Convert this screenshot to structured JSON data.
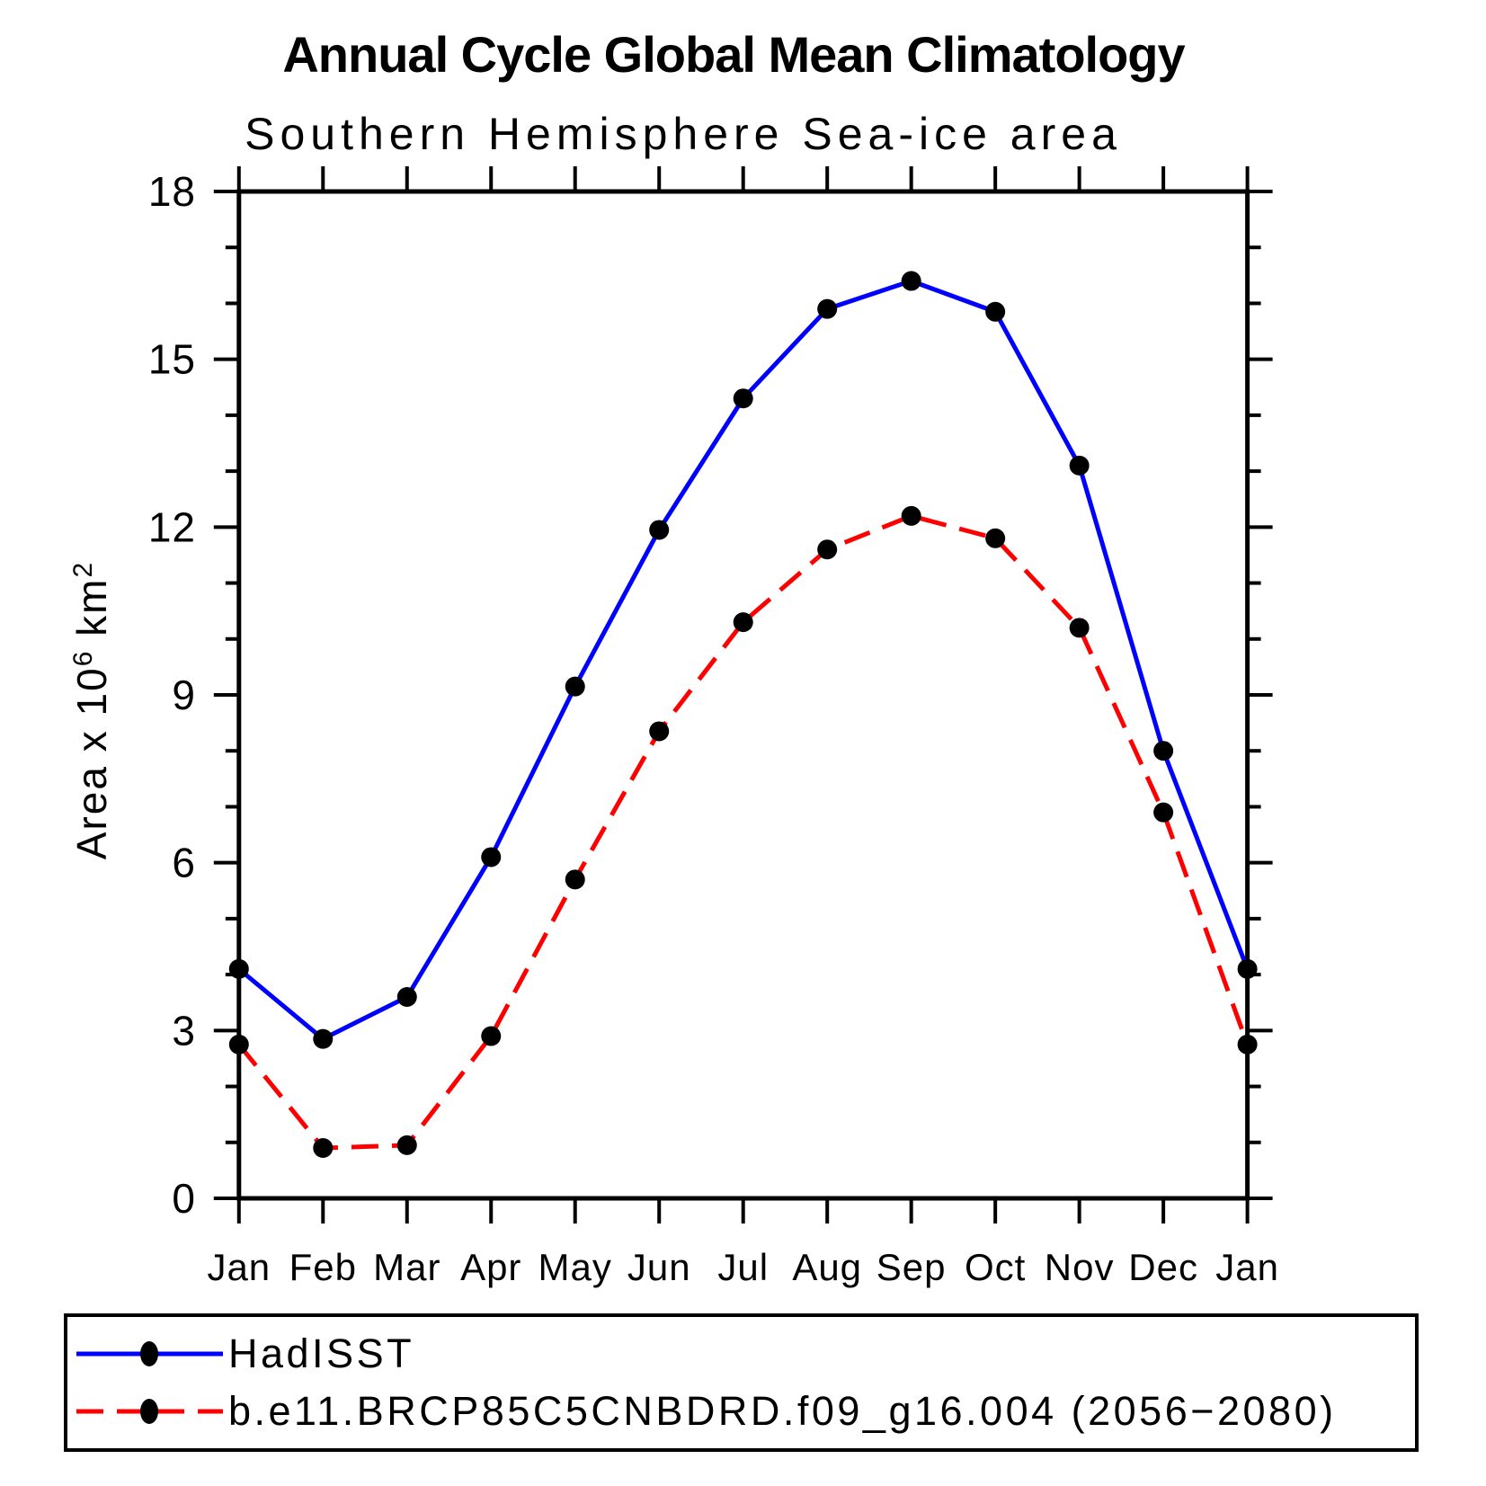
{
  "page": {
    "background": "#ffffff",
    "frame_color": "#000000"
  },
  "chart_data": {
    "type": "line",
    "title": "Annual Cycle Global Mean Climatology",
    "subtitle": "Southern Hemisphere Sea-ice area",
    "xlabel": "",
    "ylabel": "Area x 10^6 km^2",
    "ylabel_parts": {
      "prefix": "Area x 10",
      "exp1": "6",
      "mid": " km",
      "exp2": "2"
    },
    "categories": [
      "Jan",
      "Feb",
      "Mar",
      "Apr",
      "May",
      "Jun",
      "Jul",
      "Aug",
      "Sep",
      "Oct",
      "Nov",
      "Dec",
      "Jan"
    ],
    "ylim": [
      0,
      18
    ],
    "ytick_major": [
      0,
      3,
      6,
      9,
      12,
      15,
      18
    ],
    "ytick_minor_step": 1,
    "grid": false,
    "legend_position": "bottom",
    "series": [
      {
        "name": "HadISST",
        "color": "#0000ff",
        "line_style": "solid",
        "marker": "circle",
        "marker_color": "#000000",
        "values": [
          4.1,
          2.85,
          3.6,
          6.1,
          9.15,
          11.95,
          14.3,
          15.9,
          16.4,
          15.85,
          13.1,
          8.0,
          4.1
        ]
      },
      {
        "name": "b.e11.BRCP85C5CNBDRD.f09_g16.004 (2056−2080)",
        "color": "#ff0000",
        "line_style": "dashed",
        "marker": "circle",
        "marker_color": "#000000",
        "values": [
          2.75,
          0.9,
          0.95,
          2.9,
          5.7,
          8.35,
          10.3,
          11.6,
          12.2,
          11.8,
          10.2,
          6.9,
          2.75
        ]
      }
    ]
  }
}
